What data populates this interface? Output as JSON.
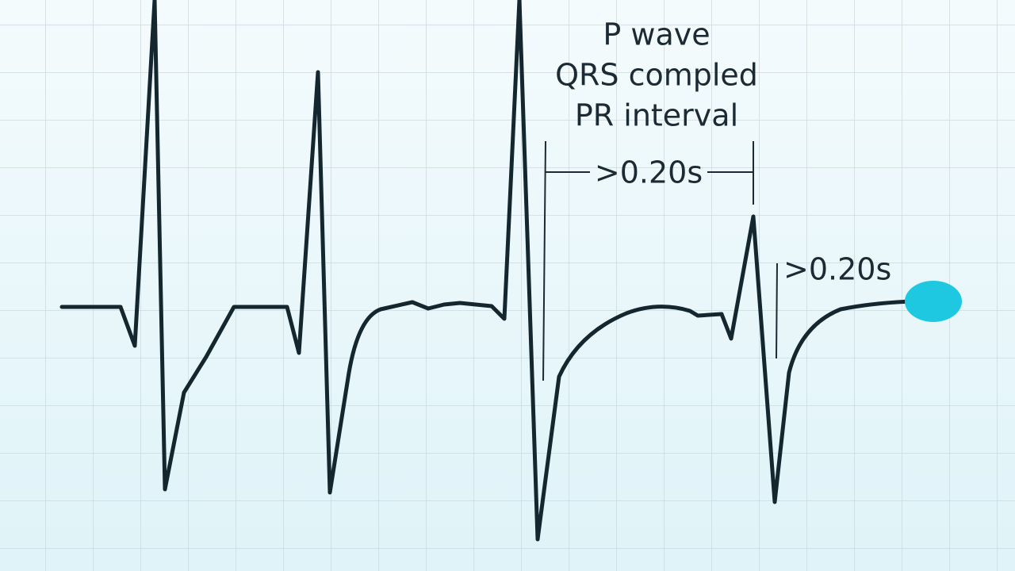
{
  "labels": {
    "p_wave": "P wave",
    "qrs_complex": "QRS compled",
    "pr_interval": "PR interval"
  },
  "intervals": [
    ">0.20s",
    ">0.20s"
  ]
}
